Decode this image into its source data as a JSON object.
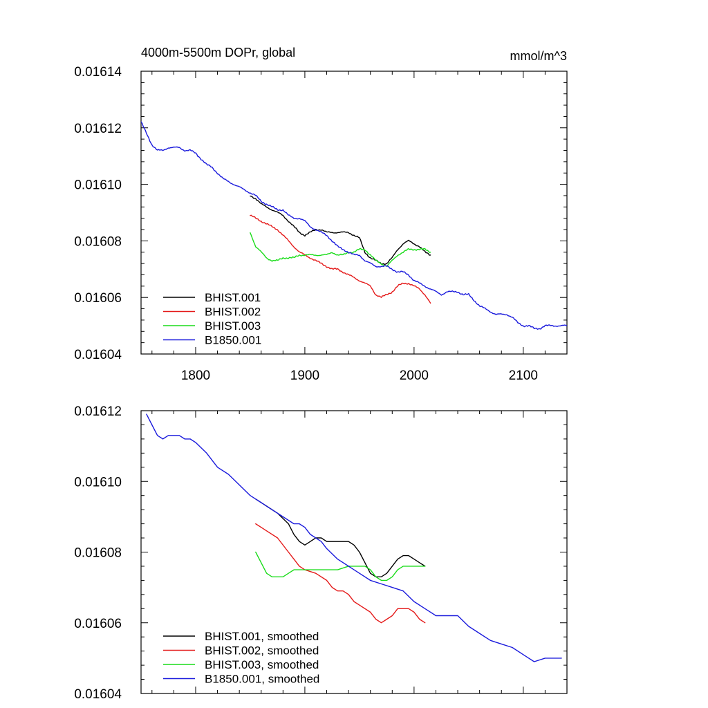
{
  "chart_data": [
    {
      "type": "line",
      "title": "4000m-5500m DOPr, global",
      "units": "mmol/m^3",
      "xlim": [
        1750,
        2140
      ],
      "ylim": [
        0.01604,
        0.01614
      ],
      "xticks": [
        1800,
        1900,
        2000,
        2100
      ],
      "xtick_labels": [
        "1800",
        "1900",
        "2000",
        "2100"
      ],
      "yticks": [
        0.01604,
        0.01606,
        0.01608,
        0.0161,
        0.01612,
        0.01614
      ],
      "ytick_labels": [
        "0.01604",
        "0.01606",
        "0.01608",
        "0.01610",
        "0.01612",
        "0.01614"
      ],
      "legend_position": "bottom-left",
      "grid": false,
      "noisy": true,
      "series": [
        {
          "name": "BHIST.001",
          "color": "#000000",
          "x": [
            1850,
            1855,
            1860,
            1865,
            1870,
            1875,
            1880,
            1885,
            1890,
            1895,
            1900,
            1905,
            1910,
            1915,
            1920,
            1925,
            1930,
            1935,
            1940,
            1945,
            1950,
            1955,
            1960,
            1965,
            1970,
            1975,
            1980,
            1985,
            1990,
            1995,
            2000,
            2005,
            2010,
            2015
          ],
          "y": [
            0.016096,
            0.016095,
            0.016093,
            0.016092,
            0.016091,
            0.01609,
            0.016089,
            0.016087,
            0.016085,
            0.016083,
            0.016082,
            0.016083,
            0.016084,
            0.016084,
            0.016083,
            0.016083,
            0.016083,
            0.016083,
            0.016083,
            0.016082,
            0.016081,
            0.016076,
            0.016074,
            0.016073,
            0.016072,
            0.016072,
            0.016074,
            0.016077,
            0.016079,
            0.01608,
            0.016079,
            0.016078,
            0.016076,
            0.016075
          ]
        },
        {
          "name": "BHIST.002",
          "color": "#e41a1a",
          "x": [
            1850,
            1855,
            1860,
            1865,
            1870,
            1875,
            1880,
            1885,
            1890,
            1895,
            1900,
            1905,
            1910,
            1915,
            1920,
            1925,
            1930,
            1935,
            1940,
            1945,
            1950,
            1955,
            1960,
            1965,
            1970,
            1975,
            1980,
            1985,
            1990,
            1995,
            2000,
            2005,
            2010,
            2015
          ],
          "y": [
            0.016089,
            0.016088,
            0.016087,
            0.016086,
            0.016085,
            0.016084,
            0.016082,
            0.01608,
            0.016078,
            0.016076,
            0.016075,
            0.016074,
            0.016073,
            0.016072,
            0.016071,
            0.01607,
            0.01607,
            0.016069,
            0.016068,
            0.016067,
            0.016066,
            0.016065,
            0.016064,
            0.016061,
            0.01606,
            0.016061,
            0.016062,
            0.016064,
            0.016065,
            0.016065,
            0.016064,
            0.016063,
            0.016061,
            0.016058
          ]
        },
        {
          "name": "BHIST.003",
          "color": "#1adc1a",
          "x": [
            1850,
            1855,
            1860,
            1865,
            1870,
            1875,
            1880,
            1885,
            1890,
            1895,
            1900,
            1905,
            1910,
            1915,
            1920,
            1925,
            1930,
            1935,
            1940,
            1945,
            1950,
            1955,
            1960,
            1965,
            1970,
            1975,
            1980,
            1985,
            1990,
            1995,
            2000,
            2005,
            2010,
            2015
          ],
          "y": [
            0.016083,
            0.016078,
            0.016076,
            0.016074,
            0.016073,
            0.016073,
            0.016074,
            0.016074,
            0.016074,
            0.016075,
            0.016075,
            0.016075,
            0.016075,
            0.016075,
            0.016075,
            0.016076,
            0.016075,
            0.016075,
            0.016076,
            0.016076,
            0.016077,
            0.016077,
            0.016075,
            0.016073,
            0.016072,
            0.016071,
            0.016073,
            0.016075,
            0.016076,
            0.016077,
            0.016077,
            0.016077,
            0.016077,
            0.016076
          ]
        },
        {
          "name": "B1850.001",
          "color": "#1a1adc",
          "x": [
            1750,
            1755,
            1760,
            1765,
            1770,
            1775,
            1780,
            1785,
            1790,
            1795,
            1800,
            1805,
            1810,
            1815,
            1820,
            1825,
            1830,
            1835,
            1840,
            1845,
            1850,
            1855,
            1860,
            1865,
            1870,
            1875,
            1880,
            1885,
            1890,
            1895,
            1900,
            1905,
            1910,
            1915,
            1920,
            1925,
            1930,
            1935,
            1940,
            1945,
            1950,
            1955,
            1960,
            1965,
            1970,
            1975,
            1980,
            1985,
            1990,
            1995,
            2000,
            2005,
            2010,
            2015,
            2020,
            2025,
            2030,
            2035,
            2040,
            2045,
            2050,
            2055,
            2060,
            2065,
            2070,
            2075,
            2080,
            2085,
            2090,
            2095,
            2100,
            2105,
            2110,
            2115,
            2120,
            2125,
            2130,
            2135,
            2140
          ],
          "y": [
            0.016122,
            0.016118,
            0.016114,
            0.016112,
            0.016112,
            0.016113,
            0.016113,
            0.016113,
            0.016112,
            0.016112,
            0.016111,
            0.016109,
            0.016107,
            0.016106,
            0.016104,
            0.016102,
            0.016101,
            0.0161,
            0.016099,
            0.016098,
            0.016097,
            0.016096,
            0.016094,
            0.016093,
            0.016092,
            0.016091,
            0.016091,
            0.016089,
            0.016088,
            0.016088,
            0.016087,
            0.016085,
            0.016084,
            0.016083,
            0.016082,
            0.01608,
            0.016078,
            0.016077,
            0.016076,
            0.016075,
            0.016075,
            0.016073,
            0.016072,
            0.016071,
            0.016071,
            0.016071,
            0.01607,
            0.016069,
            0.016069,
            0.016068,
            0.016066,
            0.016065,
            0.016064,
            0.016063,
            0.016062,
            0.016061,
            0.016062,
            0.016062,
            0.016062,
            0.016061,
            0.016061,
            0.016059,
            0.016057,
            0.016056,
            0.016055,
            0.016054,
            0.016054,
            0.016054,
            0.016053,
            0.016051,
            0.01605,
            0.01605,
            0.016049,
            0.016049,
            0.01605,
            0.01605,
            0.01605,
            0.01605,
            0.01605
          ]
        }
      ]
    },
    {
      "type": "line",
      "xlim": [
        1750,
        2140
      ],
      "ylim": [
        0.01604,
        0.01612
      ],
      "xticks": [
        1800,
        1900,
        2000,
        2100
      ],
      "yticks": [
        0.01604,
        0.01606,
        0.01608,
        0.0161,
        0.01612
      ],
      "ytick_labels": [
        "0.01604",
        "0.01606",
        "0.01608",
        "0.01610",
        "0.01612"
      ],
      "legend_position": "bottom-left",
      "grid": false,
      "noisy": false,
      "series": [
        {
          "name": "BHIST.001, smoothed",
          "color": "#000000",
          "x": [
            1855,
            1865,
            1875,
            1885,
            1890,
            1895,
            1900,
            1905,
            1910,
            1915,
            1920,
            1930,
            1940,
            1945,
            1950,
            1955,
            1960,
            1965,
            1970,
            1975,
            1980,
            1985,
            1990,
            1995,
            2000,
            2005,
            2010
          ],
          "y": [
            0.016095,
            0.016093,
            0.016091,
            0.016088,
            0.016085,
            0.016083,
            0.016082,
            0.016083,
            0.016084,
            0.016084,
            0.016083,
            0.016083,
            0.016083,
            0.016082,
            0.01608,
            0.016077,
            0.016074,
            0.016073,
            0.016073,
            0.016074,
            0.016076,
            0.016078,
            0.016079,
            0.016079,
            0.016078,
            0.016077,
            0.016076
          ]
        },
        {
          "name": "BHIST.002, smoothed",
          "color": "#e41a1a",
          "x": [
            1855,
            1865,
            1875,
            1885,
            1890,
            1895,
            1900,
            1910,
            1920,
            1925,
            1930,
            1935,
            1940,
            1945,
            1950,
            1960,
            1965,
            1970,
            1975,
            1980,
            1985,
            1990,
            1995,
            2000,
            2005,
            2010
          ],
          "y": [
            0.016088,
            0.016086,
            0.016084,
            0.01608,
            0.016078,
            0.016076,
            0.016075,
            0.016074,
            0.016072,
            0.01607,
            0.016069,
            0.016069,
            0.016068,
            0.016066,
            0.016065,
            0.016063,
            0.016061,
            0.01606,
            0.016061,
            0.016062,
            0.016064,
            0.016064,
            0.016064,
            0.016063,
            0.016061,
            0.01606
          ]
        },
        {
          "name": "BHIST.003, smoothed",
          "color": "#1adc1a",
          "x": [
            1855,
            1860,
            1865,
            1870,
            1875,
            1880,
            1885,
            1890,
            1895,
            1900,
            1910,
            1920,
            1930,
            1940,
            1950,
            1955,
            1960,
            1965,
            1970,
            1975,
            1980,
            1985,
            1990,
            1995,
            2000,
            2005,
            2010
          ],
          "y": [
            0.01608,
            0.016077,
            0.016074,
            0.016073,
            0.016073,
            0.016073,
            0.016074,
            0.016075,
            0.016075,
            0.016075,
            0.016075,
            0.016075,
            0.016075,
            0.016076,
            0.016076,
            0.016076,
            0.016075,
            0.016073,
            0.016072,
            0.016072,
            0.016073,
            0.016075,
            0.016076,
            0.016076,
            0.016076,
            0.016076,
            0.016076
          ]
        },
        {
          "name": "B1850.001, smoothed",
          "color": "#1a1adc",
          "x": [
            1755,
            1760,
            1765,
            1770,
            1775,
            1780,
            1785,
            1790,
            1795,
            1800,
            1810,
            1820,
            1830,
            1840,
            1850,
            1860,
            1870,
            1880,
            1885,
            1890,
            1895,
            1900,
            1905,
            1910,
            1915,
            1920,
            1930,
            1940,
            1950,
            1960,
            1970,
            1980,
            1990,
            2000,
            2010,
            2020,
            2030,
            2040,
            2050,
            2060,
            2070,
            2080,
            2090,
            2100,
            2110,
            2120,
            2130,
            2135
          ],
          "y": [
            0.016119,
            0.016116,
            0.016113,
            0.016112,
            0.016113,
            0.016113,
            0.016113,
            0.016112,
            0.016112,
            0.016111,
            0.016108,
            0.016104,
            0.016102,
            0.016099,
            0.016096,
            0.016094,
            0.016092,
            0.01609,
            0.016089,
            0.016088,
            0.016088,
            0.016087,
            0.016085,
            0.016084,
            0.016083,
            0.016081,
            0.016078,
            0.016076,
            0.016074,
            0.016072,
            0.016071,
            0.01607,
            0.016069,
            0.016066,
            0.016064,
            0.016062,
            0.016062,
            0.016062,
            0.016059,
            0.016057,
            0.016055,
            0.016054,
            0.016053,
            0.016051,
            0.016049,
            0.01605,
            0.01605,
            0.01605
          ]
        }
      ]
    }
  ]
}
